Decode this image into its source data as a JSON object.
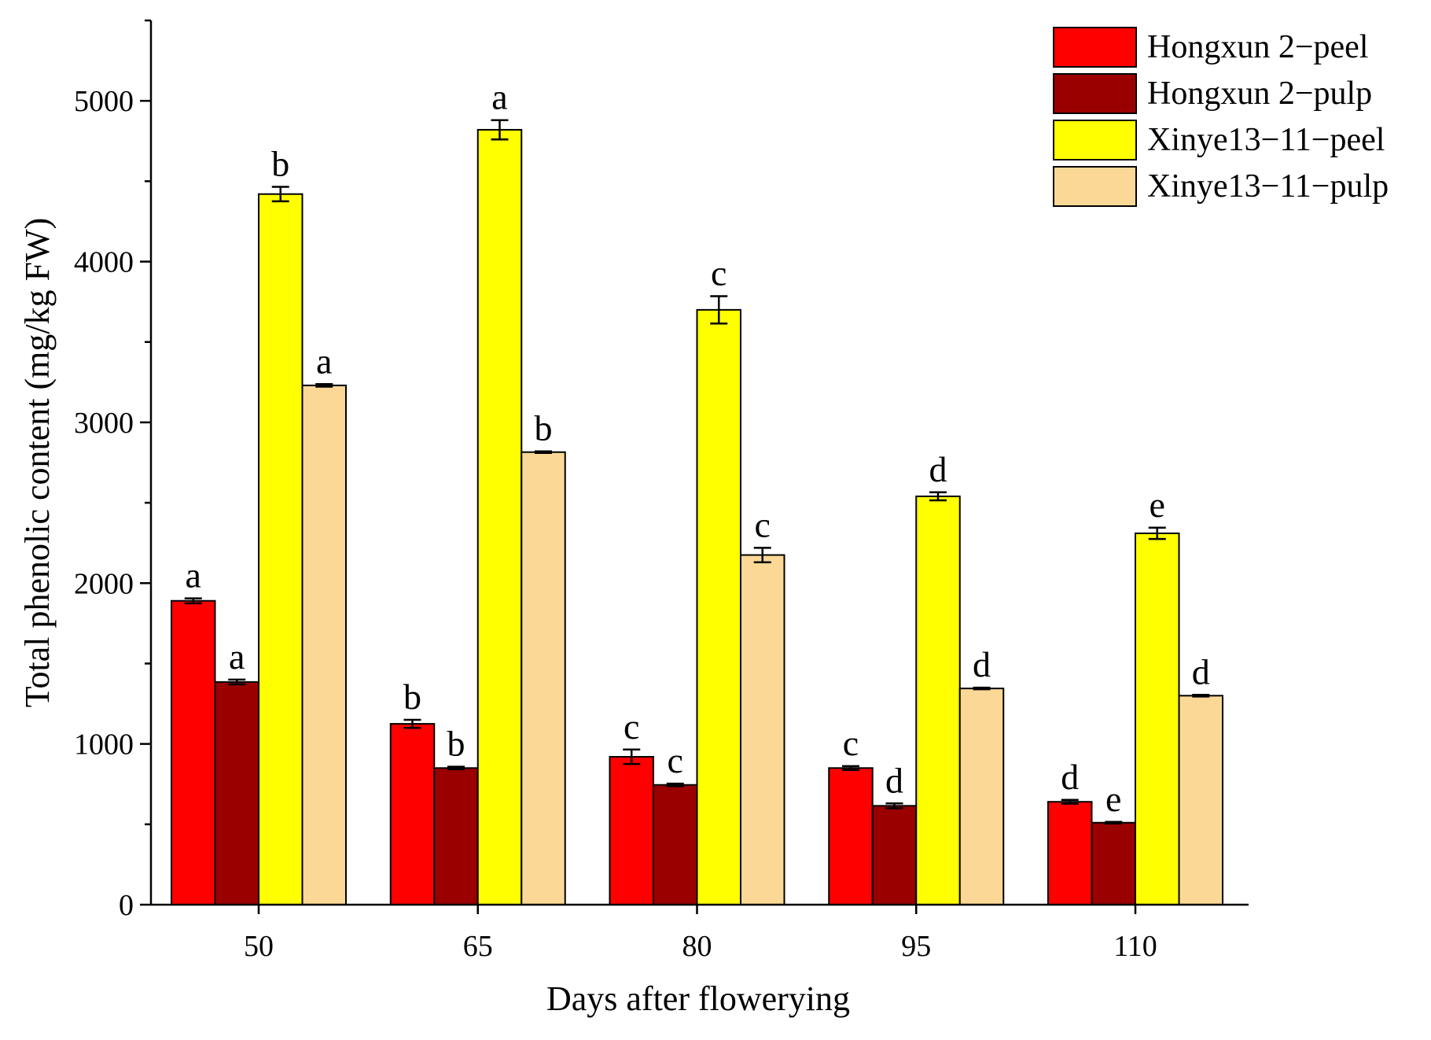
{
  "chart_data": {
    "type": "bar",
    "title": "",
    "xlabel": "Days after flowerying",
    "ylabel": "Total phenolic content (mg/kg FW)",
    "categories": [
      "50",
      "65",
      "80",
      "95",
      "110"
    ],
    "ylim": [
      0,
      5500
    ],
    "yticks": [
      0,
      1000,
      2000,
      3000,
      4000,
      5000
    ],
    "legend_position": "top-right",
    "series": [
      {
        "name": "Hongxun 2−peel",
        "color": "#ff0000",
        "values": [
          1890,
          1125,
          920,
          850,
          640
        ],
        "errors": [
          15,
          25,
          45,
          12,
          12
        ],
        "letters": [
          "a",
          "b",
          "c",
          "c",
          "d"
        ]
      },
      {
        "name": "Hongxun 2−pulp",
        "color": "#9b0000",
        "values": [
          1385,
          850,
          745,
          615,
          510
        ],
        "errors": [
          15,
          8,
          8,
          15,
          5
        ],
        "letters": [
          "a",
          "b",
          "c",
          "d",
          "e"
        ]
      },
      {
        "name": "Xinye13−11−peel",
        "color": "#ffff00",
        "values": [
          4420,
          4820,
          3700,
          2540,
          2310
        ],
        "errors": [
          45,
          60,
          85,
          25,
          35
        ],
        "letters": [
          "b",
          "a",
          "c",
          "d",
          "e"
        ]
      },
      {
        "name": "Xinye13−11−pulp",
        "color": "#fbd896",
        "values": [
          3230,
          2815,
          2175,
          1345,
          1300
        ],
        "errors": [
          8,
          5,
          45,
          5,
          5
        ],
        "letters": [
          "a",
          "b",
          "c",
          "d",
          "d"
        ]
      }
    ]
  }
}
